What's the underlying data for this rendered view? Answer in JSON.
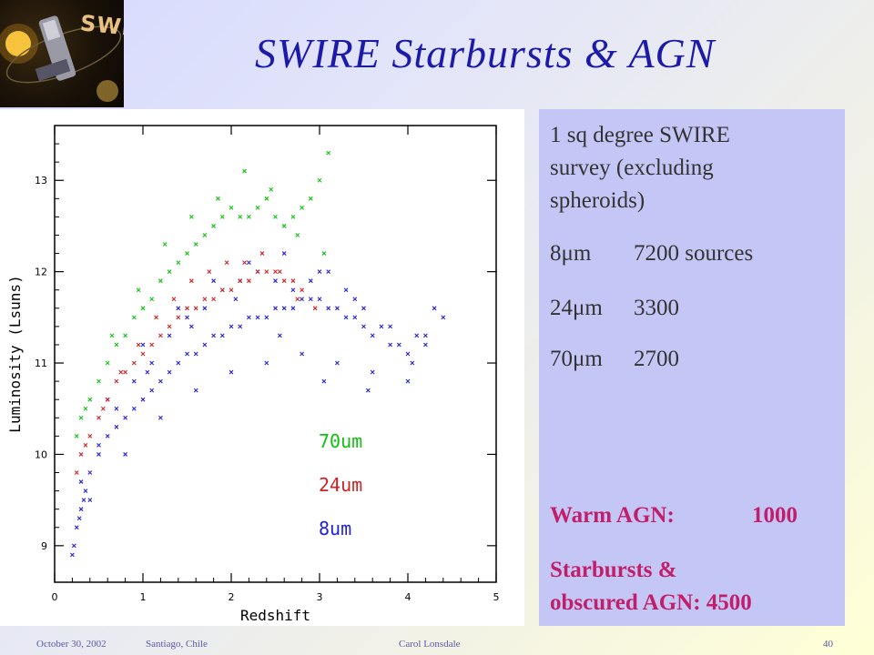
{
  "slide": {
    "title": "SWIRE Starbursts & AGN",
    "logo_text": "SWIRE",
    "logo_icon": "spitzer-telescope-logo",
    "colors": {
      "title": "#1b1ba8",
      "panel": "#c4c6f6",
      "agn_text": "#c0206a"
    }
  },
  "info": {
    "survey": "1 sq degree SWIRE survey (excluding spheroids)",
    "survey_lines": [
      "1 sq degree SWIRE",
      "survey (excluding",
      "spheroids)"
    ],
    "bands": [
      {
        "band": "8μm",
        "count": "7200 sources"
      },
      {
        "band": "24μm",
        "count": "3300"
      },
      {
        "band": "70μm",
        "count": "2700"
      }
    ],
    "warm_agn_label": "Warm AGN:",
    "warm_agn_value": "1000",
    "starbursts_line1": "Starbursts  &",
    "starbursts_line2": "obscured AGN:  4500"
  },
  "footer": {
    "date": "October 30, 2002",
    "location": "Santiago, Chile",
    "author": "Carol Lonsdale",
    "page": "40"
  },
  "chart_data": {
    "type": "scatter",
    "xlabel": "Redshift",
    "ylabel": "Luminosity (Lsuns)",
    "xlim": [
      0,
      5
    ],
    "ylim": [
      8.6,
      13.6
    ],
    "x_ticks": [
      "0",
      "1",
      "2",
      "3",
      "4",
      "5"
    ],
    "y_ticks": [
      "9",
      "10",
      "11",
      "12",
      "13"
    ],
    "legend_position": "lower-right",
    "marker": "x",
    "series": [
      {
        "name": "8um",
        "color": "#2020d8",
        "x": [
          0.2,
          0.25,
          0.3,
          0.35,
          0.4,
          0.5,
          0.6,
          0.7,
          0.8,
          0.9,
          1.0,
          1.1,
          1.2,
          1.3,
          1.4,
          1.5,
          1.6,
          1.7,
          1.8,
          1.9,
          2.0,
          2.1,
          2.2,
          2.3,
          2.4,
          2.5,
          2.6,
          2.7,
          2.8,
          2.9,
          3.0,
          3.1,
          3.2,
          3.3,
          3.4,
          3.5,
          3.6,
          3.8,
          4.0,
          4.2,
          4.4,
          0.3,
          0.5,
          0.7,
          0.9,
          1.1,
          1.3,
          1.5,
          1.7,
          1.9,
          2.1,
          2.3,
          2.5,
          2.7,
          2.9,
          3.1,
          3.3,
          3.5,
          3.7,
          3.9,
          4.1,
          4.3,
          0.4,
          0.8,
          1.2,
          1.6,
          2.0,
          2.4,
          2.8,
          3.2,
          3.6,
          4.0,
          0.6,
          1.0,
          1.4,
          1.8,
          2.2,
          2.6,
          3.0,
          3.4,
          3.8,
          4.2,
          0.22,
          0.28,
          0.33,
          1.05,
          1.55,
          2.05,
          2.55,
          3.05,
          3.55,
          4.05
        ],
        "y": [
          8.9,
          9.2,
          9.4,
          9.6,
          9.8,
          10.0,
          10.2,
          10.3,
          10.4,
          10.5,
          10.6,
          10.7,
          10.8,
          10.9,
          11.0,
          11.1,
          11.1,
          11.2,
          11.3,
          11.3,
          11.4,
          11.4,
          11.5,
          11.5,
          11.5,
          11.6,
          11.6,
          11.6,
          11.7,
          11.7,
          11.7,
          11.6,
          11.6,
          11.5,
          11.5,
          11.4,
          11.3,
          11.2,
          11.1,
          11.3,
          11.5,
          9.7,
          10.1,
          10.5,
          10.8,
          11.0,
          11.3,
          11.5,
          11.6,
          11.8,
          11.9,
          12.0,
          11.9,
          11.8,
          11.9,
          12.0,
          11.8,
          11.6,
          11.4,
          11.2,
          11.3,
          11.6,
          9.5,
          10.0,
          10.4,
          10.7,
          10.9,
          11.0,
          11.1,
          11.0,
          10.9,
          10.8,
          10.6,
          11.2,
          11.6,
          11.9,
          12.1,
          12.2,
          12.0,
          11.7,
          11.4,
          11.2,
          9.0,
          9.3,
          9.5,
          10.9,
          11.4,
          11.7,
          11.3,
          10.8,
          10.7,
          11.0
        ]
      },
      {
        "name": "24um",
        "color": "#d02020",
        "x": [
          0.25,
          0.3,
          0.4,
          0.5,
          0.6,
          0.7,
          0.8,
          0.9,
          1.0,
          1.1,
          1.2,
          1.3,
          1.4,
          1.5,
          1.6,
          1.7,
          1.8,
          1.9,
          2.0,
          2.1,
          2.2,
          2.3,
          2.4,
          2.5,
          2.6,
          2.7,
          2.8,
          0.35,
          0.55,
          0.75,
          0.95,
          1.15,
          1.35,
          1.55,
          1.75,
          1.95,
          2.15,
          2.35,
          2.55,
          2.75,
          2.95
        ],
        "y": [
          9.8,
          10.0,
          10.2,
          10.4,
          10.6,
          10.8,
          10.9,
          11.0,
          11.1,
          11.2,
          11.3,
          11.4,
          11.5,
          11.6,
          11.6,
          11.7,
          11.7,
          11.8,
          11.8,
          11.9,
          11.9,
          12.0,
          12.0,
          12.0,
          11.9,
          11.9,
          11.8,
          10.1,
          10.5,
          10.9,
          11.2,
          11.5,
          11.7,
          11.9,
          12.0,
          12.1,
          12.1,
          12.2,
          12.0,
          11.7,
          11.6
        ]
      },
      {
        "name": "70um",
        "color": "#10c010",
        "x": [
          0.25,
          0.3,
          0.4,
          0.5,
          0.6,
          0.7,
          0.8,
          0.9,
          1.0,
          1.1,
          1.2,
          1.3,
          1.4,
          1.5,
          1.6,
          1.7,
          1.8,
          1.9,
          2.0,
          2.1,
          2.2,
          2.3,
          2.4,
          2.5,
          2.6,
          2.7,
          2.8,
          2.9,
          3.0,
          3.1,
          0.35,
          0.65,
          0.95,
          1.25,
          1.55,
          1.85,
          2.15,
          2.45,
          2.75,
          3.05
        ],
        "y": [
          10.2,
          10.4,
          10.6,
          10.8,
          11.0,
          11.2,
          11.3,
          11.5,
          11.6,
          11.7,
          11.9,
          12.0,
          12.1,
          12.2,
          12.3,
          12.4,
          12.5,
          12.6,
          12.7,
          12.6,
          12.6,
          12.7,
          12.8,
          12.6,
          12.5,
          12.6,
          12.7,
          12.8,
          13.0,
          13.3,
          10.5,
          11.3,
          11.8,
          12.3,
          12.6,
          12.8,
          13.1,
          12.9,
          12.4,
          12.2
        ]
      }
    ]
  }
}
